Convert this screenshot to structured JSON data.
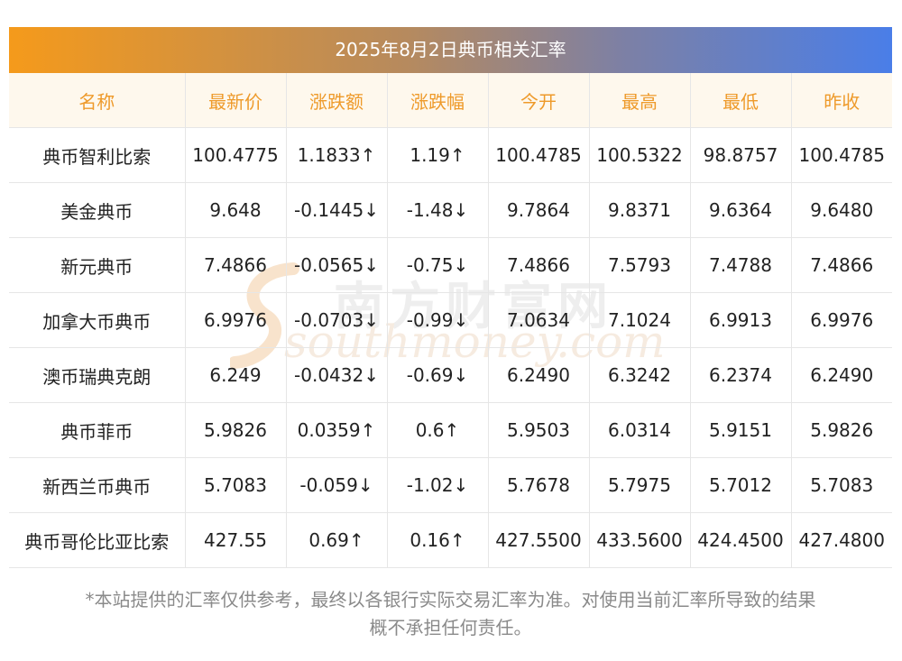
{
  "title": "2025年8月2日典币相关汇率",
  "headers": [
    "名称",
    "最新价",
    "涨跌额",
    "涨跌幅",
    "今开",
    "最高",
    "最低",
    "昨收"
  ],
  "rows": [
    {
      "name": "典币智利比索",
      "latest": "100.4775",
      "change": "1.1833↑",
      "pct": "1.19↑",
      "open": "100.4785",
      "high": "100.5322",
      "low": "98.8757",
      "prev": "100.4785",
      "dir": "up"
    },
    {
      "name": "美金典币",
      "latest": "9.648",
      "change": "-0.1445↓",
      "pct": "-1.48↓",
      "open": "9.7864",
      "high": "9.8371",
      "low": "9.6364",
      "prev": "9.6480",
      "dir": "down"
    },
    {
      "name": "新元典币",
      "latest": "7.4866",
      "change": "-0.0565↓",
      "pct": "-0.75↓",
      "open": "7.4866",
      "high": "7.5793",
      "low": "7.4788",
      "prev": "7.4866",
      "dir": "down"
    },
    {
      "name": "加拿大币典币",
      "latest": "6.9976",
      "change": "-0.0703↓",
      "pct": "-0.99↓",
      "open": "7.0634",
      "high": "7.1024",
      "low": "6.9913",
      "prev": "6.9976",
      "dir": "down"
    },
    {
      "name": "澳币瑞典克朗",
      "latest": "6.249",
      "change": "-0.0432↓",
      "pct": "-0.69↓",
      "open": "6.2490",
      "high": "6.3242",
      "low": "6.2374",
      "prev": "6.2490",
      "dir": "down"
    },
    {
      "name": "典币菲币",
      "latest": "5.9826",
      "change": "0.0359↑",
      "pct": "0.6↑",
      "open": "5.9503",
      "high": "6.0314",
      "low": "5.9151",
      "prev": "5.9826",
      "dir": "up"
    },
    {
      "name": "新西兰币典币",
      "latest": "5.7083",
      "change": "-0.059↓",
      "pct": "-1.02↓",
      "open": "5.7678",
      "high": "5.7975",
      "low": "5.7012",
      "prev": "5.7083",
      "dir": "down"
    },
    {
      "name": "典币哥伦比亚比索",
      "latest": "427.55",
      "change": "0.69↑",
      "pct": "0.16↑",
      "open": "427.5500",
      "high": "433.5600",
      "low": "424.4500",
      "prev": "427.4800",
      "dir": "up"
    }
  ],
  "watermark": {
    "cn": "南方财富网",
    "en": "southmoney.com"
  },
  "colors": {
    "up": "#e8241f",
    "down": "#1f8a1f",
    "header_text": "#ee9a2a",
    "header_bg": "#fef8ed",
    "gradient_start": "#f59a1b",
    "gradient_end": "#4a7ee8"
  },
  "note_lines": [
    "*本站提供的汇率仅供参考，最终以各银行实际交易汇率为准。对使用当前汇率所导致的结果",
    "概不承担任何责任。"
  ]
}
